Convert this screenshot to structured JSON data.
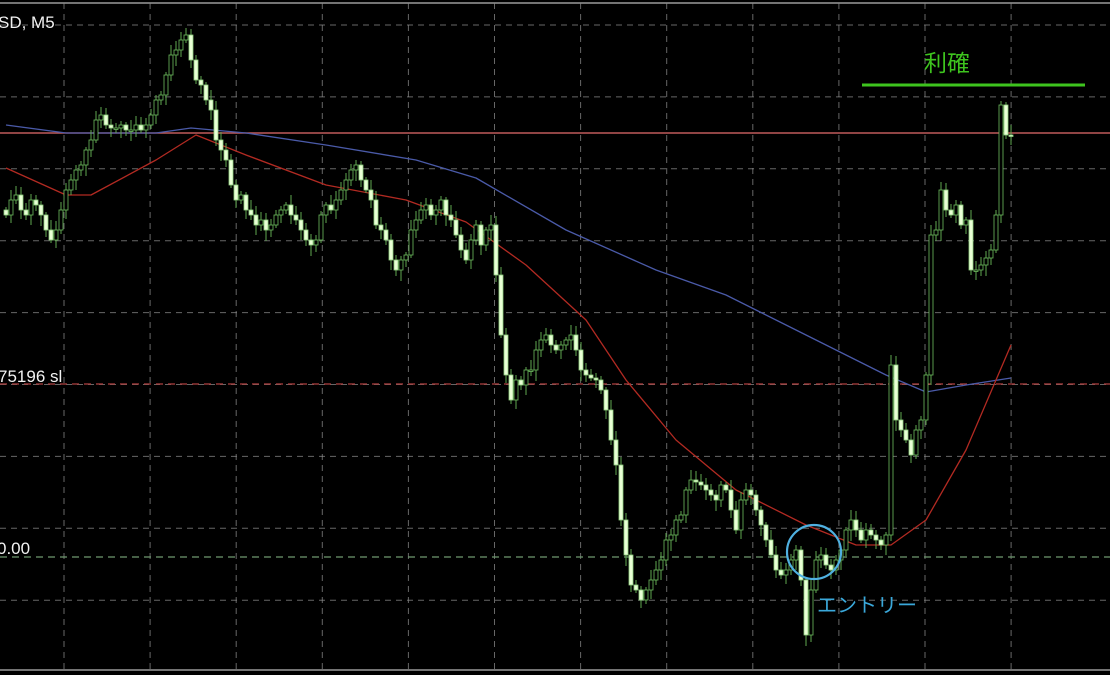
{
  "chart_title": "SD, M5",
  "colors": {
    "background": "#000000",
    "grid": "#8a8a8a",
    "bull_outline": "#6fbf5f",
    "bear_fill": "#e9ffd6",
    "ma_fast": "#b22a22",
    "ma_slow": "#4a5aa8",
    "price_line": "#c05a5a",
    "sl_line": "#b04040",
    "entry_line": "#6f9a6f",
    "take_profit": "#3ec41e",
    "entry_marker": "#4fb0e0"
  },
  "chart_data": {
    "type": "candlestick",
    "timeframe": "M5",
    "ylim": [
      1.74905,
      1.7558
    ],
    "grid": true,
    "close": [
      1.75365,
      1.7538,
      1.75385,
      1.7537,
      1.75365,
      1.7538,
      1.75375,
      1.75365,
      1.7535,
      1.7534,
      1.7535,
      1.7537,
      1.7539,
      1.754,
      1.7541,
      1.75415,
      1.7543,
      1.7544,
      1.7546,
      1.75465,
      1.75455,
      1.75452,
      1.75452,
      1.75455,
      1.7545,
      1.7545,
      1.75455,
      1.7545,
      1.75455,
      1.75465,
      1.7548,
      1.75485,
      1.75505,
      1.75525,
      1.7553,
      1.7554,
      1.75545,
      1.7552,
      1.755,
      1.75495,
      1.7548,
      1.7547,
      1.7544,
      1.7543,
      1.7542,
      1.75395,
      1.7538,
      1.75385,
      1.7537,
      1.75365,
      1.75355,
      1.7536,
      1.7535,
      1.75355,
      1.75365,
      1.7537,
      1.75375,
      1.75365,
      1.7536,
      1.7535,
      1.7534,
      1.75335,
      1.7534,
      1.75365,
      1.75375,
      1.7537,
      1.7538,
      1.7539,
      1.754,
      1.7541,
      1.75415,
      1.754,
      1.7539,
      1.7538,
      1.75355,
      1.7535,
      1.7534,
      1.7532,
      1.7531,
      1.7532,
      1.75325,
      1.7535,
      1.7536,
      1.7537,
      1.75375,
      1.75365,
      1.7537,
      1.7538,
      1.75365,
      1.7536,
      1.75345,
      1.7533,
      1.7532,
      1.7534,
      1.75355,
      1.75335,
      1.7535,
      1.75355,
      1.75305,
      1.75245,
      1.75205,
      1.7518,
      1.752,
      1.75195,
      1.7521,
      1.7521,
      1.7523,
      1.7524,
      1.75245,
      1.75235,
      1.7523,
      1.75235,
      1.7524,
      1.75245,
      1.7523,
      1.7521,
      1.75205,
      1.75202,
      1.752,
      1.7519,
      1.7517,
      1.7514,
      1.75115,
      1.7506,
      1.75025,
      1.74995,
      1.7499,
      1.7498,
      1.7499,
      1.75,
      1.7501,
      1.7502,
      1.7504,
      1.75045,
      1.7506,
      1.75065,
      1.7509,
      1.751,
      1.75098,
      1.75095,
      1.7509,
      1.75085,
      1.7508,
      1.75095,
      1.7509,
      1.7507,
      1.7505,
      1.7508,
      1.7509,
      1.75085,
      1.7507,
      1.75055,
      1.7504,
      1.75025,
      1.7501,
      1.75005,
      1.7501,
      1.7502,
      1.7503,
      1.75,
      1.74945,
      1.7499,
      1.7502,
      1.75025,
      1.75015,
      1.7501,
      1.7502,
      1.7503,
      1.7505,
      1.7506,
      1.7505,
      1.7504,
      1.7505,
      1.75045,
      1.7504,
      1.75035,
      1.75045,
      1.75215,
      1.7516,
      1.7515,
      1.7514,
      1.75125,
      1.7515,
      1.7516,
      1.75205,
      1.75345,
      1.7535,
      1.7539,
      1.7537,
      1.75365,
      1.75375,
      1.75355,
      1.7536,
      1.7531,
      1.7531,
      1.75315,
      1.75322,
      1.7533,
      1.75365,
      1.75475,
      1.75445,
      1.75444
    ],
    "ma_slow": [
      [
        0,
        1.75455
      ],
      [
        12,
        1.75447
      ],
      [
        30,
        1.75447
      ],
      [
        37,
        1.75452
      ],
      [
        48,
        1.75447
      ],
      [
        64,
        1.75435
      ],
      [
        82,
        1.7542
      ],
      [
        94,
        1.75402
      ],
      [
        112,
        1.7535
      ],
      [
        130,
        1.7531
      ],
      [
        144,
        1.75285
      ],
      [
        160,
        1.75245
      ],
      [
        176,
        1.75205
      ],
      [
        184,
        1.75188
      ],
      [
        192,
        1.75195
      ],
      [
        201,
        1.75202
      ]
    ],
    "ma_fast": [
      [
        0,
        1.75412
      ],
      [
        12,
        1.75385
      ],
      [
        17,
        1.75385
      ],
      [
        30,
        1.7542
      ],
      [
        38,
        1.75445
      ],
      [
        48,
        1.75425
      ],
      [
        64,
        1.75395
      ],
      [
        80,
        1.7538
      ],
      [
        92,
        1.75358
      ],
      [
        104,
        1.75315
      ],
      [
        116,
        1.7526
      ],
      [
        124,
        1.752
      ],
      [
        134,
        1.7514
      ],
      [
        146,
        1.7509
      ],
      [
        160,
        1.75055
      ],
      [
        170,
        1.75035
      ],
      [
        177,
        1.75035
      ],
      [
        184,
        1.7506
      ],
      [
        192,
        1.7513
      ],
      [
        201,
        1.75235
      ]
    ],
    "levels": {
      "price_line": 1.75447,
      "stop_loss": 1.75196,
      "entry": 1.75023,
      "take_profit": 1.75495
    },
    "annotations": {
      "take_profit_label": "利確",
      "entry_label": "エントリー",
      "entry_candle_index": 161
    }
  },
  "labels": {
    "sl_label": "75196 sl",
    "entry_price_label": "0.00"
  }
}
